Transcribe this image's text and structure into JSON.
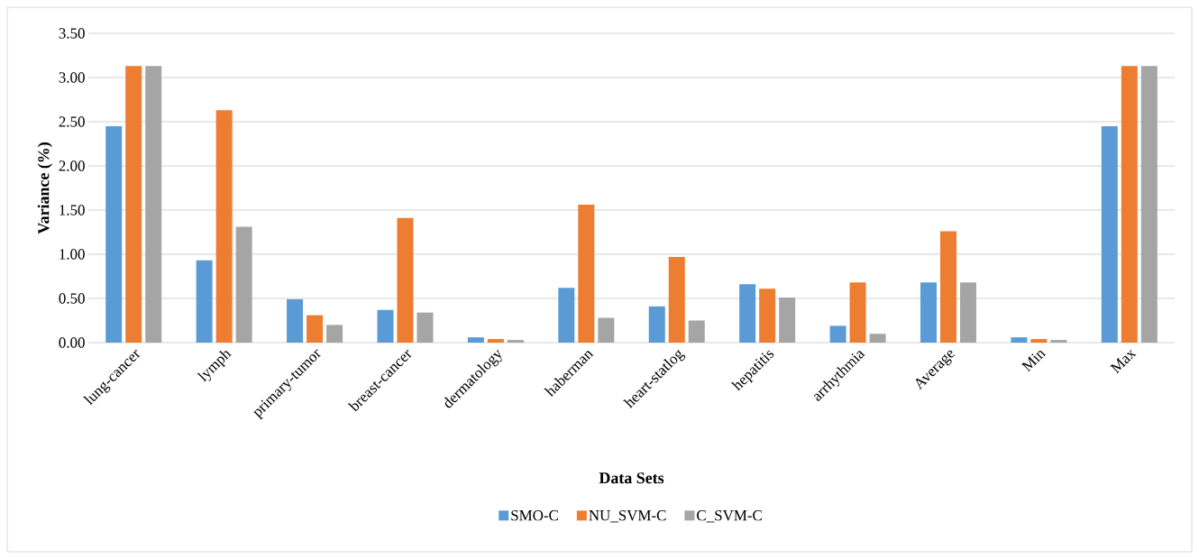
{
  "chart_data": {
    "type": "bar",
    "xlabel": "Data Sets",
    "ylabel": "Variance (%)",
    "categories": [
      "lung-cancer",
      "lymph",
      "primary-tumor",
      "breast-cancer",
      "dermatology",
      "haberman",
      "heart-statlog",
      "hepatitis",
      "arrhythmia",
      "Average",
      "Min",
      "Max"
    ],
    "series": [
      {
        "name": "SMO-C",
        "color": "#5b9bd5",
        "values": [
          2.45,
          0.93,
          0.49,
          0.37,
          0.06,
          0.62,
          0.41,
          0.66,
          0.19,
          0.68,
          0.06,
          2.45
        ]
      },
      {
        "name": "NU_SVM-C",
        "color": "#ed7d31",
        "values": [
          3.13,
          2.63,
          0.31,
          1.41,
          0.04,
          1.56,
          0.97,
          0.61,
          0.68,
          1.26,
          0.04,
          3.13
        ]
      },
      {
        "name": "C_SVM-C",
        "color": "#a5a5a5",
        "values": [
          3.13,
          1.31,
          0.2,
          0.34,
          0.03,
          0.28,
          0.25,
          0.51,
          0.1,
          0.68,
          0.03,
          3.13
        ]
      }
    ],
    "ylim": [
      0,
      3.5
    ],
    "yticks": [
      {
        "value": 0,
        "label": "0.00"
      },
      {
        "value": 0.5,
        "label": "0.50"
      },
      {
        "value": 1,
        "label": "1.00"
      },
      {
        "value": 1.5,
        "label": "1.50"
      },
      {
        "value": 2,
        "label": "2.00"
      },
      {
        "value": 2.5,
        "label": "2.50"
      },
      {
        "value": 3,
        "label": "3.00"
      },
      {
        "value": 3.5,
        "label": "3.50"
      }
    ],
    "grid": "y",
    "legend": "bottom"
  }
}
